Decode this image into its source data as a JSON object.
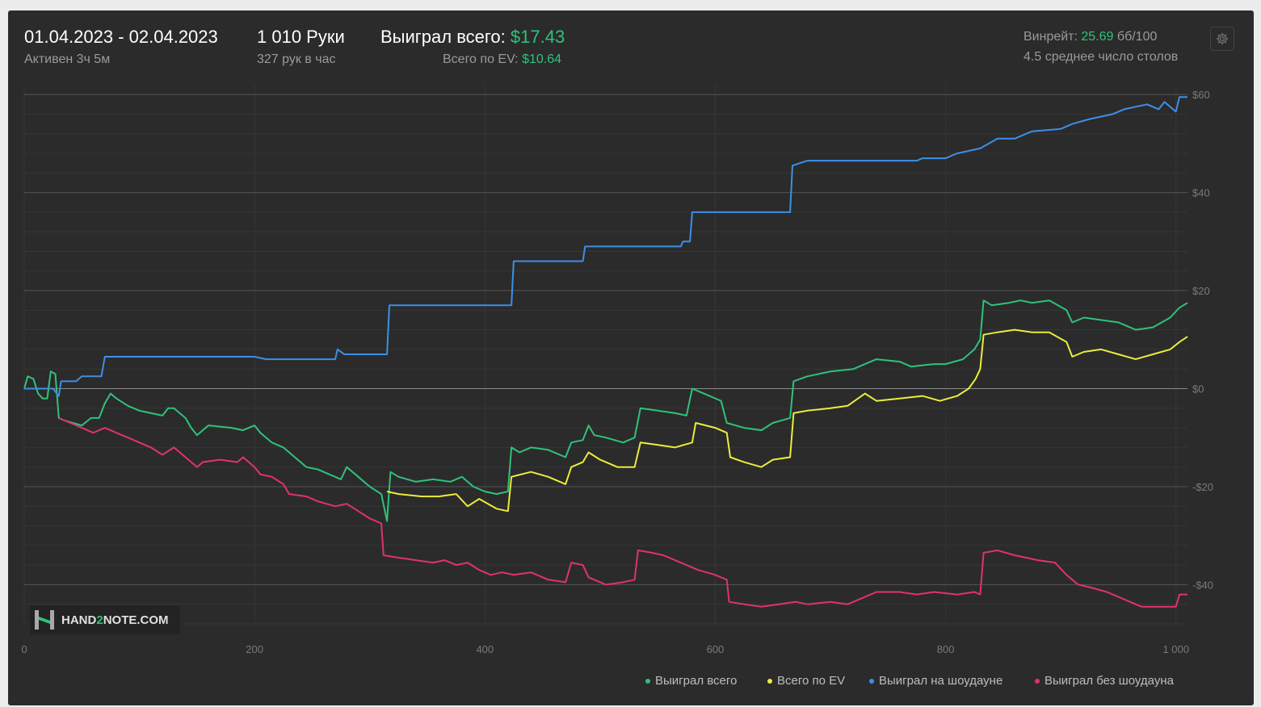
{
  "header": {
    "date_range": "01.04.2023 - 02.04.2023",
    "active_time": "Активен 3ч 5м",
    "hands_count": "1 010 Руки",
    "hands_per_hour": "327 рук в час",
    "won_total_label": "Выиграл всего:",
    "won_total_value": "$17.43",
    "ev_total_label": "Всего по EV:",
    "ev_total_value": "$10.64",
    "winrate_label": "Винрейт:",
    "winrate_value": "25.69",
    "winrate_unit": "бб/100",
    "avg_tables": "4.5 среднее число столов"
  },
  "logo": {
    "text_a": "HAND",
    "text_b": "2",
    "text_c": "NOTE.COM"
  },
  "colors": {
    "green": "#2fc27b",
    "yellow": "#ecec3c",
    "blue": "#3d8fe8",
    "pink": "#e0336b",
    "background": "#2b2b2b"
  },
  "chart_data": {
    "type": "line",
    "xlim": [
      0,
      1010
    ],
    "ylim": [
      -48,
      62
    ],
    "x_ticks": [
      0,
      200,
      400,
      600,
      800,
      1000
    ],
    "x_tick_labels": [
      "0",
      "200",
      "400",
      "600",
      "800",
      "1 000"
    ],
    "y_ticks": [
      60,
      40,
      20,
      0,
      -20,
      -40
    ],
    "y_tick_labels": [
      "$60",
      "$40",
      "$20",
      "$0",
      "-$20",
      "-$40"
    ],
    "grid": true,
    "legend_position": "bottom-right",
    "series": [
      {
        "name": "Выиграл всего",
        "color": "#2fc27b",
        "points": [
          [
            0,
            0
          ],
          [
            3,
            2.5
          ],
          [
            8,
            2
          ],
          [
            12,
            -1
          ],
          [
            16,
            -2
          ],
          [
            20,
            -2
          ],
          [
            23,
            3.5
          ],
          [
            27,
            3
          ],
          [
            30,
            -6
          ],
          [
            35,
            -6.5
          ],
          [
            42,
            -7
          ],
          [
            50,
            -7.5
          ],
          [
            58,
            -6
          ],
          [
            65,
            -6
          ],
          [
            70,
            -3
          ],
          [
            75,
            -1
          ],
          [
            80,
            -2
          ],
          [
            90,
            -3.5
          ],
          [
            100,
            -4.5
          ],
          [
            110,
            -5
          ],
          [
            120,
            -5.5
          ],
          [
            125,
            -4
          ],
          [
            130,
            -4
          ],
          [
            135,
            -5
          ],
          [
            140,
            -6
          ],
          [
            145,
            -8
          ],
          [
            150,
            -9.5
          ],
          [
            160,
            -7.5
          ],
          [
            180,
            -8
          ],
          [
            190,
            -8.5
          ],
          [
            200,
            -7.5
          ],
          [
            205,
            -9
          ],
          [
            215,
            -11
          ],
          [
            225,
            -12
          ],
          [
            235,
            -14
          ],
          [
            245,
            -16
          ],
          [
            255,
            -16.5
          ],
          [
            265,
            -17.5
          ],
          [
            275,
            -18.5
          ],
          [
            280,
            -16
          ],
          [
            290,
            -18
          ],
          [
            300,
            -20
          ],
          [
            310,
            -21.5
          ],
          [
            315,
            -27
          ],
          [
            318,
            -17
          ],
          [
            325,
            -18
          ],
          [
            340,
            -19
          ],
          [
            355,
            -18.5
          ],
          [
            370,
            -19
          ],
          [
            380,
            -18
          ],
          [
            390,
            -20
          ],
          [
            400,
            -21
          ],
          [
            410,
            -21.5
          ],
          [
            420,
            -21
          ],
          [
            423,
            -12
          ],
          [
            430,
            -13
          ],
          [
            440,
            -12
          ],
          [
            455,
            -12.5
          ],
          [
            470,
            -14
          ],
          [
            475,
            -11
          ],
          [
            485,
            -10.5
          ],
          [
            490,
            -7.5
          ],
          [
            495,
            -9.5
          ],
          [
            505,
            -10
          ],
          [
            520,
            -11
          ],
          [
            530,
            -10
          ],
          [
            535,
            -4
          ],
          [
            550,
            -4.5
          ],
          [
            565,
            -5
          ],
          [
            575,
            -5.5
          ],
          [
            580,
            0
          ],
          [
            590,
            -1
          ],
          [
            605,
            -2.5
          ],
          [
            610,
            -7
          ],
          [
            625,
            -8
          ],
          [
            640,
            -8.5
          ],
          [
            650,
            -7
          ],
          [
            665,
            -6
          ],
          [
            668,
            1.5
          ],
          [
            680,
            2.5
          ],
          [
            700,
            3.5
          ],
          [
            720,
            4
          ],
          [
            730,
            5
          ],
          [
            740,
            6
          ],
          [
            760,
            5.5
          ],
          [
            770,
            4.5
          ],
          [
            790,
            5
          ],
          [
            800,
            5
          ],
          [
            815,
            6
          ],
          [
            825,
            8
          ],
          [
            830,
            10
          ],
          [
            833,
            18
          ],
          [
            840,
            17
          ],
          [
            855,
            17.5
          ],
          [
            865,
            18
          ],
          [
            875,
            17.5
          ],
          [
            890,
            18
          ],
          [
            905,
            16
          ],
          [
            910,
            13.5
          ],
          [
            920,
            14.5
          ],
          [
            935,
            14
          ],
          [
            950,
            13.5
          ],
          [
            965,
            12
          ],
          [
            980,
            12.5
          ],
          [
            995,
            14.5
          ],
          [
            1003,
            16.5
          ],
          [
            1010,
            17.5
          ]
        ]
      },
      {
        "name": "Всего по EV",
        "color": "#ecec3c",
        "points": [
          [
            315,
            -21
          ],
          [
            325,
            -21.5
          ],
          [
            345,
            -22
          ],
          [
            360,
            -22
          ],
          [
            375,
            -21.5
          ],
          [
            385,
            -24
          ],
          [
            395,
            -22.5
          ],
          [
            410,
            -24.5
          ],
          [
            420,
            -25
          ],
          [
            423,
            -18
          ],
          [
            440,
            -17
          ],
          [
            455,
            -18
          ],
          [
            470,
            -19.5
          ],
          [
            475,
            -16
          ],
          [
            485,
            -15
          ],
          [
            490,
            -13
          ],
          [
            500,
            -14.5
          ],
          [
            515,
            -16
          ],
          [
            530,
            -16
          ],
          [
            535,
            -11
          ],
          [
            550,
            -11.5
          ],
          [
            565,
            -12
          ],
          [
            580,
            -11
          ],
          [
            583,
            -7
          ],
          [
            600,
            -8
          ],
          [
            610,
            -9
          ],
          [
            613,
            -14
          ],
          [
            625,
            -15
          ],
          [
            640,
            -16
          ],
          [
            650,
            -14.5
          ],
          [
            665,
            -14
          ],
          [
            668,
            -5
          ],
          [
            680,
            -4.5
          ],
          [
            700,
            -4
          ],
          [
            715,
            -3.5
          ],
          [
            730,
            -1
          ],
          [
            740,
            -2.5
          ],
          [
            760,
            -2
          ],
          [
            780,
            -1.5
          ],
          [
            795,
            -2.5
          ],
          [
            810,
            -1.5
          ],
          [
            820,
            0
          ],
          [
            826,
            2
          ],
          [
            830,
            4
          ],
          [
            833,
            11
          ],
          [
            845,
            11.5
          ],
          [
            860,
            12
          ],
          [
            875,
            11.5
          ],
          [
            890,
            11.5
          ],
          [
            905,
            9.5
          ],
          [
            910,
            6.5
          ],
          [
            920,
            7.5
          ],
          [
            935,
            8
          ],
          [
            950,
            7
          ],
          [
            965,
            6
          ],
          [
            980,
            7
          ],
          [
            995,
            8
          ],
          [
            1003,
            9.5
          ],
          [
            1010,
            10.6
          ]
        ]
      },
      {
        "name": "Выиграл на шоудауне",
        "color": "#3d8fe8",
        "points": [
          [
            0,
            0
          ],
          [
            25,
            0
          ],
          [
            30,
            -1.5
          ],
          [
            32,
            1.5
          ],
          [
            45,
            1.5
          ],
          [
            50,
            2.5
          ],
          [
            67,
            2.5
          ],
          [
            70,
            6.5
          ],
          [
            200,
            6.5
          ],
          [
            210,
            6
          ],
          [
            270,
            6
          ],
          [
            272,
            8
          ],
          [
            278,
            7
          ],
          [
            315,
            7
          ],
          [
            317,
            17
          ],
          [
            423,
            17
          ],
          [
            425,
            26
          ],
          [
            485,
            26
          ],
          [
            487,
            29
          ],
          [
            570,
            29
          ],
          [
            572,
            30
          ],
          [
            578,
            30
          ],
          [
            580,
            36
          ],
          [
            665,
            36
          ],
          [
            667,
            45.5
          ],
          [
            680,
            46.5
          ],
          [
            720,
            46.5
          ],
          [
            740,
            46.5
          ],
          [
            775,
            46.5
          ],
          [
            780,
            47
          ],
          [
            800,
            47
          ],
          [
            810,
            48
          ],
          [
            830,
            49
          ],
          [
            845,
            51
          ],
          [
            860,
            51
          ],
          [
            875,
            52.5
          ],
          [
            900,
            53
          ],
          [
            910,
            54
          ],
          [
            925,
            55
          ],
          [
            935,
            55.5
          ],
          [
            945,
            56
          ],
          [
            955,
            57
          ],
          [
            965,
            57.5
          ],
          [
            975,
            58
          ],
          [
            985,
            57
          ],
          [
            990,
            58.5
          ],
          [
            1000,
            56.5
          ],
          [
            1003,
            59.5
          ],
          [
            1010,
            59.5
          ]
        ]
      },
      {
        "name": "Выиграл без шоудауна",
        "color": "#e0336b",
        "points": [
          [
            30,
            -6
          ],
          [
            40,
            -7
          ],
          [
            50,
            -8
          ],
          [
            60,
            -9
          ],
          [
            70,
            -8
          ],
          [
            80,
            -9
          ],
          [
            90,
            -10
          ],
          [
            100,
            -11
          ],
          [
            110,
            -12
          ],
          [
            120,
            -13.5
          ],
          [
            130,
            -12
          ],
          [
            140,
            -14
          ],
          [
            150,
            -16
          ],
          [
            155,
            -15
          ],
          [
            170,
            -14.5
          ],
          [
            185,
            -15
          ],
          [
            190,
            -14
          ],
          [
            200,
            -16
          ],
          [
            205,
            -17.5
          ],
          [
            215,
            -18
          ],
          [
            225,
            -19.5
          ],
          [
            230,
            -21.5
          ],
          [
            245,
            -22
          ],
          [
            255,
            -23
          ],
          [
            270,
            -24
          ],
          [
            280,
            -23.5
          ],
          [
            290,
            -25
          ],
          [
            300,
            -26.5
          ],
          [
            310,
            -27.5
          ],
          [
            312,
            -34
          ],
          [
            325,
            -34.5
          ],
          [
            340,
            -35
          ],
          [
            355,
            -35.5
          ],
          [
            365,
            -35
          ],
          [
            375,
            -36
          ],
          [
            385,
            -35.5
          ],
          [
            395,
            -37
          ],
          [
            405,
            -38
          ],
          [
            415,
            -37.5
          ],
          [
            425,
            -38
          ],
          [
            440,
            -37.5
          ],
          [
            455,
            -39
          ],
          [
            470,
            -39.5
          ],
          [
            475,
            -35.5
          ],
          [
            485,
            -36
          ],
          [
            490,
            -38.5
          ],
          [
            505,
            -40
          ],
          [
            520,
            -39.5
          ],
          [
            530,
            -39
          ],
          [
            533,
            -33
          ],
          [
            545,
            -33.5
          ],
          [
            555,
            -34
          ],
          [
            565,
            -35
          ],
          [
            575,
            -36
          ],
          [
            585,
            -37
          ],
          [
            600,
            -38
          ],
          [
            610,
            -39
          ],
          [
            612,
            -43.5
          ],
          [
            625,
            -44
          ],
          [
            640,
            -44.5
          ],
          [
            655,
            -44
          ],
          [
            670,
            -43.5
          ],
          [
            680,
            -44
          ],
          [
            700,
            -43.5
          ],
          [
            715,
            -44
          ],
          [
            730,
            -42.5
          ],
          [
            740,
            -41.5
          ],
          [
            760,
            -41.5
          ],
          [
            775,
            -42
          ],
          [
            790,
            -41.5
          ],
          [
            810,
            -42
          ],
          [
            825,
            -41.5
          ],
          [
            830,
            -42
          ],
          [
            833,
            -33.5
          ],
          [
            845,
            -33
          ],
          [
            860,
            -34
          ],
          [
            870,
            -34.5
          ],
          [
            880,
            -35
          ],
          [
            895,
            -35.5
          ],
          [
            905,
            -38
          ],
          [
            915,
            -40
          ],
          [
            925,
            -40.5
          ],
          [
            940,
            -41.5
          ],
          [
            955,
            -43
          ],
          [
            970,
            -44.5
          ],
          [
            985,
            -44.5
          ],
          [
            1000,
            -44.5
          ],
          [
            1003,
            -42
          ],
          [
            1010,
            -42
          ]
        ]
      }
    ]
  }
}
